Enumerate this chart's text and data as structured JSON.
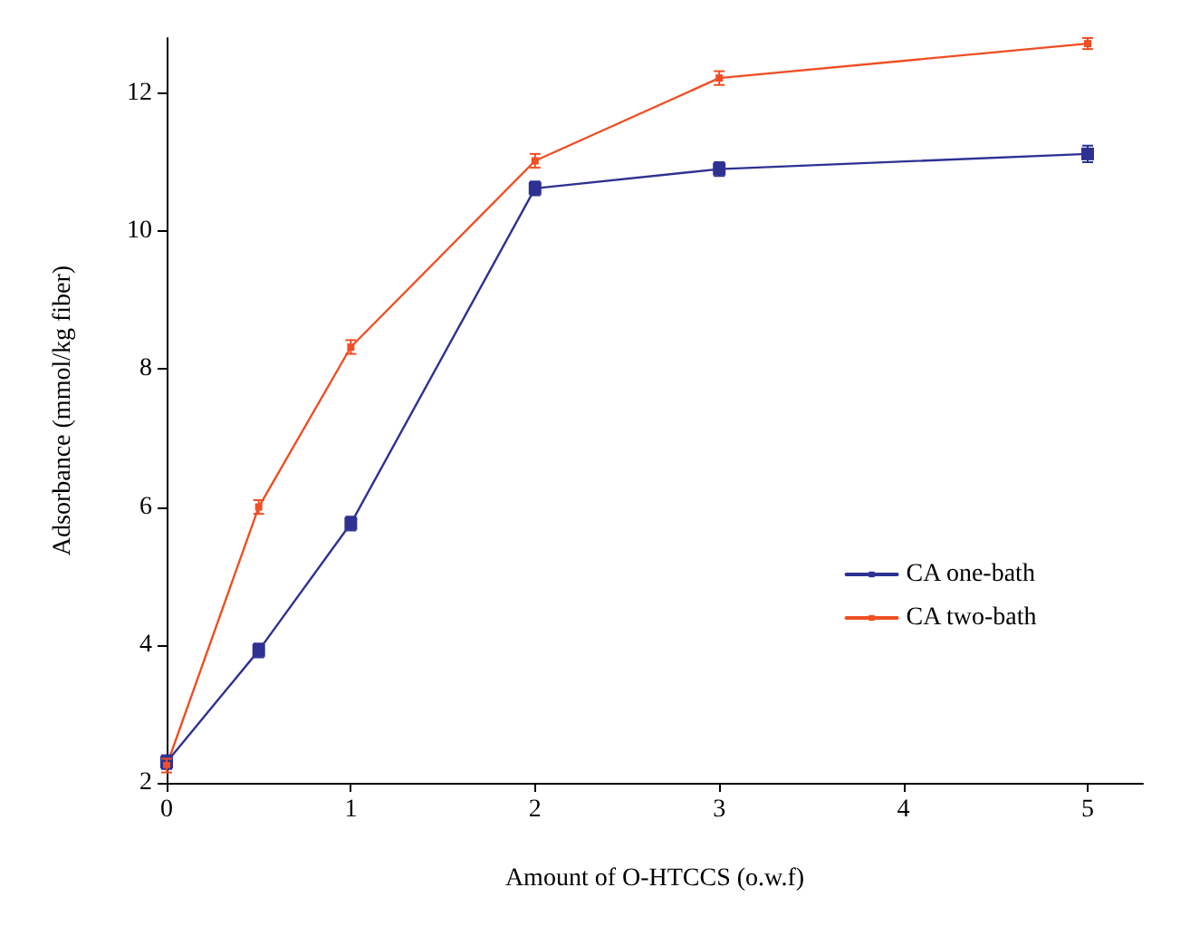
{
  "chart_data": {
    "type": "line",
    "xlabel": "Amount of O-HTCCS (o.w.f)",
    "ylabel": "Adsorbance (mmol/kg fiber)",
    "x": [
      0,
      0.5,
      1,
      2,
      3,
      5
    ],
    "series": [
      {
        "name": "CA one-bath",
        "color": "#2e3192",
        "values": [
          2.3,
          3.92,
          5.76,
          10.62,
          10.9,
          11.12
        ],
        "errors": [
          0.1,
          0.1,
          0.1,
          0.1,
          0.1,
          0.12
        ]
      },
      {
        "name": "CA two-bath",
        "color": "#f04e23",
        "values": [
          2.25,
          6.0,
          8.32,
          11.02,
          12.22,
          12.72
        ],
        "errors": [
          0.1,
          0.1,
          0.1,
          0.1,
          0.1,
          0.08
        ]
      }
    ],
    "xlim": [
      0,
      5.3
    ],
    "ylim": [
      2,
      12.8
    ],
    "xticks": [
      0,
      1,
      2,
      3,
      4,
      5
    ],
    "yticks": [
      2,
      4,
      6,
      8,
      10,
      12
    ],
    "grid": false,
    "legend": "bottom right",
    "marker": "square",
    "line_style": "solid"
  }
}
